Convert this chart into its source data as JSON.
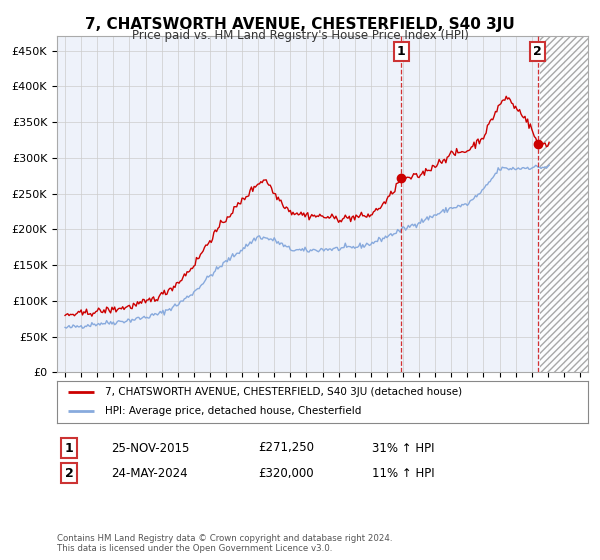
{
  "title": "7, CHATSWORTH AVENUE, CHESTERFIELD, S40 3JU",
  "subtitle": "Price paid vs. HM Land Registry's House Price Index (HPI)",
  "legend_line1": "7, CHATSWORTH AVENUE, CHESTERFIELD, S40 3JU (detached house)",
  "legend_line2": "HPI: Average price, detached house, Chesterfield",
  "transaction1_label": "1",
  "transaction1_date": "25-NOV-2015",
  "transaction1_price": "£271,250",
  "transaction1_hpi": "31% ↑ HPI",
  "transaction1_year": 2015.9,
  "transaction1_value": 271250,
  "transaction2_label": "2",
  "transaction2_date": "24-MAY-2024",
  "transaction2_price": "£320,000",
  "transaction2_hpi": "11% ↑ HPI",
  "transaction2_year": 2024.38,
  "transaction2_value": 320000,
  "hatch_start": 2024.5,
  "hatch_end": 2027.5,
  "xlim": [
    1994.5,
    2027.5
  ],
  "ylim": [
    0,
    470000
  ],
  "yticks": [
    0,
    50000,
    100000,
    150000,
    200000,
    250000,
    300000,
    350000,
    400000,
    450000
  ],
  "ytick_labels": [
    "£0",
    "£50K",
    "£100K",
    "£150K",
    "£200K",
    "£250K",
    "£300K",
    "£350K",
    "£400K",
    "£450K"
  ],
  "xticks": [
    1995,
    1996,
    1997,
    1998,
    1999,
    2000,
    2001,
    2002,
    2003,
    2004,
    2005,
    2006,
    2007,
    2008,
    2009,
    2010,
    2011,
    2012,
    2013,
    2014,
    2015,
    2016,
    2017,
    2018,
    2019,
    2020,
    2021,
    2022,
    2023,
    2024,
    2025,
    2026,
    2027
  ],
  "red_color": "#cc0000",
  "blue_color": "#88aadd",
  "hatch_facecolor": "#e8e8e8",
  "grid_color": "#cccccc",
  "bg_color": "#eef2fa",
  "footer": "Contains HM Land Registry data © Crown copyright and database right 2024.\nThis data is licensed under the Open Government Licence v3.0."
}
